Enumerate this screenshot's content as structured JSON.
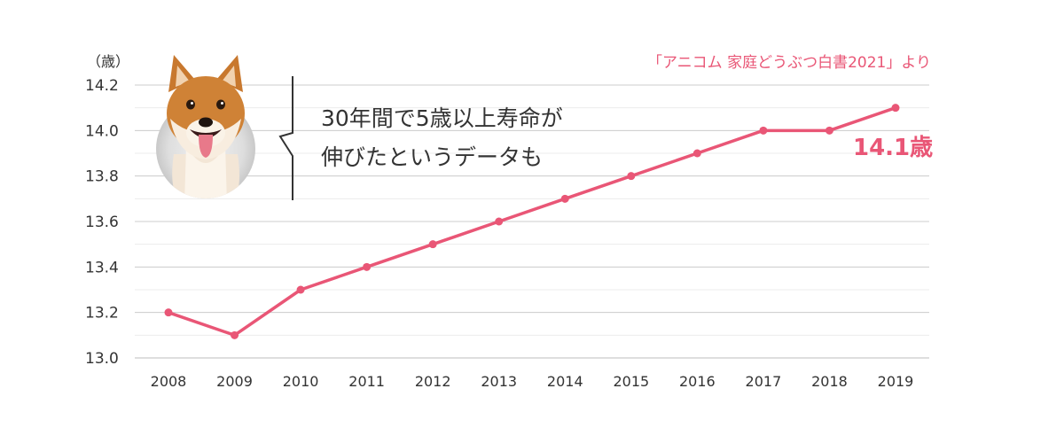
{
  "chart_data": {
    "type": "line",
    "y_unit": "（歳）",
    "source": "「アニコム 家庭どうぶつ白書2021」より",
    "callout_lines": [
      "30年間で5歳以上寿命が",
      "伸びたというデータも"
    ],
    "end_label": "14.1歳",
    "x": [
      "2008",
      "2009",
      "2010",
      "2011",
      "2012",
      "2013",
      "2014",
      "2015",
      "2016",
      "2017",
      "2018",
      "2019"
    ],
    "y": [
      13.2,
      13.1,
      13.3,
      13.4,
      13.5,
      13.6,
      13.7,
      13.8,
      13.9,
      14.0,
      14.0,
      14.1
    ],
    "ylim": [
      13.0,
      14.2
    ],
    "y_ticks": [
      13.0,
      13.2,
      13.4,
      13.6,
      13.8,
      14.0,
      14.2
    ],
    "y_tick_labels": [
      "13.0",
      "13.2",
      "13.4",
      "13.6",
      "13.8",
      "14.0",
      "14.2"
    ],
    "grid": true,
    "colors": {
      "line": "#e95676",
      "accent": "#e95676",
      "text": "#333333",
      "grid": "#cccccc"
    }
  },
  "illustration": {
    "icon": "shiba-dog-icon"
  }
}
